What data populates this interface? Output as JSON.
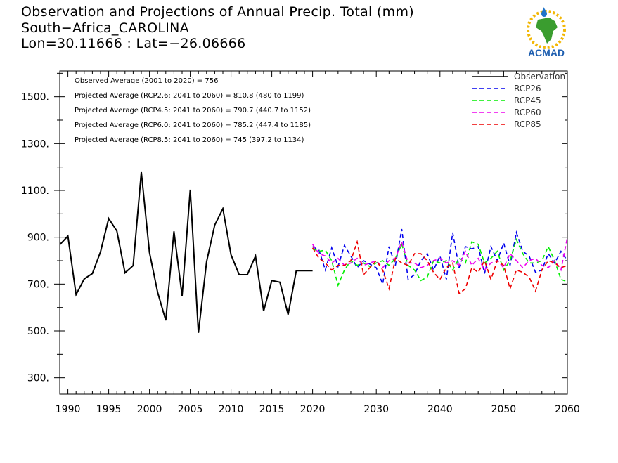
{
  "title": {
    "line1": "Observation and Projections of Annual Precip. Total (mm)",
    "line2": "South−Africa_CAROLINA",
    "line3": "Lon=30.11666 : Lat=−26.06666"
  },
  "logo": {
    "text": "ACMAD",
    "icon": "africa-map-logo"
  },
  "annotations": [
    "Observed Average (2001 to 2020) = 756",
    "Projected Average (RCP2.6: 2041 to 2060) = 810.8 (480 to 1199)",
    "Projected Average (RCP4.5: 2041 to 2060) = 790.7 (440.7 to 1152)",
    "Projected Average (RCP6.0: 2041 to 2060) = 785.2 (447.4 to 1185)",
    "Projected Average (RCP8.5: 2041 to 2060) = 745 (397.2 to 1134)"
  ],
  "chart_data": {
    "type": "line",
    "legend_position": "top-right",
    "grid": false,
    "xlim": [
      1989,
      2060
    ],
    "ylim": [
      230,
      1610
    ],
    "x_ticks": [
      {
        "value": 1990,
        "label": "1990"
      },
      {
        "value": 1995,
        "label": "1995"
      },
      {
        "value": 2000,
        "label": "2000"
      },
      {
        "value": 2005,
        "label": "2005"
      },
      {
        "value": 2010,
        "label": "2010"
      },
      {
        "value": 2015,
        "label": "2015"
      },
      {
        "value": 2020,
        "label": "2020"
      },
      {
        "value": 2030,
        "label": "2030"
      },
      {
        "value": 2040,
        "label": "2040"
      },
      {
        "value": 2050,
        "label": "2050"
      },
      {
        "value": 2060,
        "label": "2060"
      }
    ],
    "y_ticks": [
      {
        "value": 300,
        "label": "300."
      },
      {
        "value": 500,
        "label": "500."
      },
      {
        "value": 700,
        "label": "700."
      },
      {
        "value": 900,
        "label": "900."
      },
      {
        "value": 1100,
        "label": "1100."
      },
      {
        "value": 1300,
        "label": "1300."
      },
      {
        "value": 1500,
        "label": "1500."
      }
    ],
    "series": [
      {
        "name": "Observation",
        "color": "#000000",
        "dash": "solid",
        "x": [
          1989,
          1990,
          1991,
          1992,
          1993,
          1994,
          1995,
          1996,
          1997,
          1998,
          1999,
          2000,
          2001,
          2002,
          2003,
          2004,
          2005,
          2006,
          2007,
          2008,
          2009,
          2010,
          2011,
          2012,
          2013,
          2014,
          2015,
          2016,
          2017,
          2018,
          2019,
          2020
        ],
        "values": [
          868,
          905,
          655,
          722,
          745,
          838,
          980,
          927,
          748,
          779,
          1178,
          835,
          665,
          545,
          925,
          650,
          1103,
          492,
          795,
          952,
          1022,
          825,
          740,
          740,
          820,
          585,
          715,
          708,
          570,
          757,
          757,
          757
        ]
      },
      {
        "name": "RCP26",
        "color": "#0000ee",
        "dash": "dashed",
        "x": [
          2020,
          2021,
          2022,
          2023,
          2024,
          2025,
          2026,
          2027,
          2028,
          2029,
          2030,
          2031,
          2032,
          2033,
          2034,
          2035,
          2036,
          2037,
          2038,
          2039,
          2040,
          2041,
          2042,
          2043,
          2044,
          2045,
          2046,
          2047,
          2048,
          2049,
          2050,
          2051,
          2052,
          2053,
          2054,
          2055,
          2056,
          2057,
          2058,
          2059,
          2060
        ],
        "values": [
          860,
          845,
          760,
          855,
          775,
          865,
          820,
          770,
          800,
          785,
          770,
          700,
          860,
          780,
          935,
          720,
          740,
          800,
          830,
          760,
          820,
          720,
          920,
          770,
          860,
          850,
          860,
          745,
          860,
          800,
          875,
          780,
          920,
          840,
          820,
          750,
          760,
          830,
          790,
          840,
          800
        ]
      },
      {
        "name": "RCP45",
        "color": "#00ee00",
        "dash": "dashed",
        "x": [
          2020,
          2021,
          2022,
          2023,
          2024,
          2025,
          2026,
          2027,
          2028,
          2029,
          2030,
          2031,
          2032,
          2033,
          2034,
          2035,
          2036,
          2037,
          2038,
          2039,
          2040,
          2041,
          2042,
          2043,
          2044,
          2045,
          2046,
          2047,
          2048,
          2049,
          2050,
          2051,
          2052,
          2053,
          2054,
          2055,
          2056,
          2057,
          2058,
          2059,
          2060
        ],
        "values": [
          850,
          840,
          845,
          800,
          695,
          760,
          800,
          780,
          790,
          775,
          790,
          800,
          780,
          810,
          870,
          780,
          760,
          715,
          730,
          800,
          790,
          800,
          760,
          810,
          790,
          880,
          870,
          790,
          810,
          840,
          760,
          800,
          890,
          830,
          790,
          790,
          800,
          860,
          800,
          720,
          710
        ]
      },
      {
        "name": "RCP60",
        "color": "#ee00ee",
        "dash": "dashed",
        "x": [
          2020,
          2021,
          2022,
          2023,
          2024,
          2025,
          2026,
          2027,
          2028,
          2029,
          2030,
          2031,
          2032,
          2033,
          2034,
          2035,
          2036,
          2037,
          2038,
          2039,
          2040,
          2041,
          2042,
          2043,
          2044,
          2045,
          2046,
          2047,
          2048,
          2049,
          2050,
          2051,
          2052,
          2053,
          2054,
          2055,
          2056,
          2057,
          2058,
          2059,
          2060
        ],
        "values": [
          870,
          830,
          820,
          790,
          810,
          780,
          790,
          810,
          780,
          790,
          800,
          770,
          800,
          810,
          880,
          790,
          790,
          770,
          780,
          800,
          810,
          790,
          800,
          780,
          840,
          780,
          810,
          760,
          790,
          800,
          770,
          830,
          800,
          770,
          800,
          810,
          780,
          770,
          800,
          760,
          900
        ]
      },
      {
        "name": "RCP85",
        "color": "#ee0000",
        "dash": "dashed",
        "x": [
          2020,
          2021,
          2022,
          2023,
          2024,
          2025,
          2026,
          2027,
          2028,
          2029,
          2030,
          2031,
          2032,
          2033,
          2034,
          2035,
          2036,
          2037,
          2038,
          2039,
          2040,
          2041,
          2042,
          2043,
          2044,
          2045,
          2046,
          2047,
          2048,
          2049,
          2050,
          2051,
          2052,
          2053,
          2054,
          2055,
          2056,
          2057,
          2058,
          2059,
          2060
        ],
        "values": [
          855,
          810,
          790,
          760,
          780,
          780,
          800,
          880,
          740,
          770,
          800,
          760,
          680,
          810,
          790,
          780,
          830,
          830,
          800,
          750,
          720,
          770,
          790,
          660,
          680,
          770,
          750,
          800,
          720,
          800,
          780,
          680,
          760,
          750,
          730,
          670,
          760,
          800,
          790,
          770,
          780
        ]
      }
    ]
  }
}
